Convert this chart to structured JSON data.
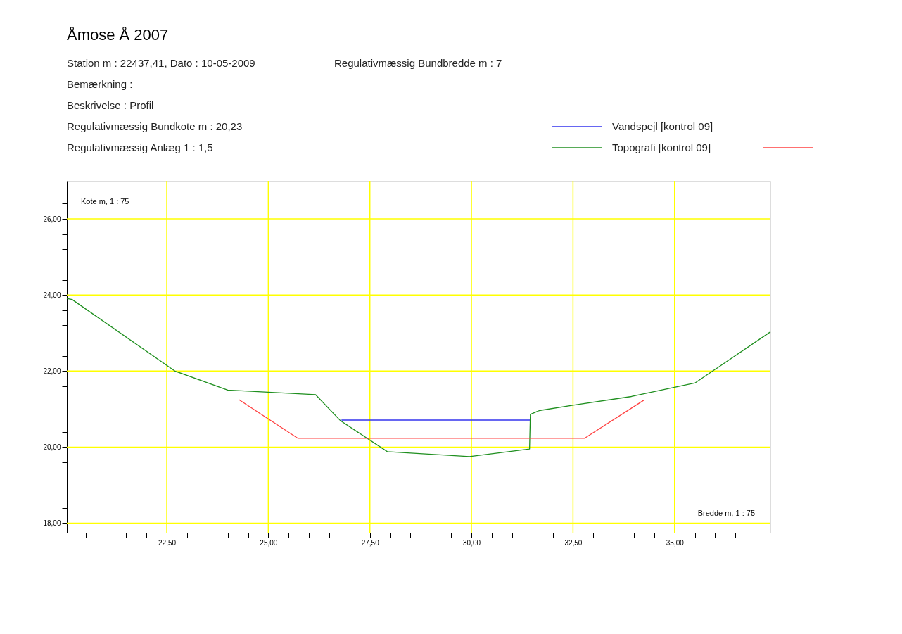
{
  "chart_data": {
    "type": "line",
    "title": "Åmose Å 2007",
    "annotations": [
      "Station m : 22437,41, Dato : 10-05-2009",
      "Regulativmæssig Bundbredde m : 7",
      "Bemærkning :",
      "Beskrivelse : Profil",
      "Regulativmæssig Bundkote m : 20,23",
      "Regulativmæssig Anlæg 1 : 1,5"
    ],
    "xlabel": "Bredde m, 1 : 75",
    "ylabel": "Kote m, 1 : 75",
    "series": [
      {
        "name": "Vandspejl [kontrol 09]",
        "color": "#3333ee",
        "x": [
          26.8,
          31.45
        ],
        "values": [
          20.71,
          20.71
        ]
      },
      {
        "name": "Topografi [kontrol 09]",
        "color": "#1f8f1f",
        "x": [
          20.04,
          20.17,
          22.7,
          24.0,
          26.16,
          26.78,
          27.93,
          29.95,
          31.43,
          31.45,
          31.67,
          32.5,
          33.94,
          35.51,
          37.36
        ],
        "values": [
          23.91,
          23.88,
          22.0,
          21.5,
          21.38,
          20.69,
          19.88,
          19.75,
          19.95,
          20.86,
          20.96,
          21.1,
          21.33,
          21.69,
          23.03
        ]
      },
      {
        "color": "#ff4040",
        "x": [
          24.27,
          25.73,
          32.78,
          34.24
        ],
        "values": [
          21.25,
          20.23,
          20.23,
          21.23
        ]
      }
    ],
    "xlim": [
      20.04,
      37.36
    ],
    "ylim": [
      17.75,
      27.0
    ],
    "xticks": [
      {
        "value": 20.5,
        "label": null
      },
      {
        "value": 21.0,
        "label": null
      },
      {
        "value": 21.5,
        "label": null
      },
      {
        "value": 22.0,
        "label": null
      },
      {
        "value": 22.5,
        "label": "22,50"
      },
      {
        "value": 23.0,
        "label": null
      },
      {
        "value": 23.5,
        "label": null
      },
      {
        "value": 24.0,
        "label": null
      },
      {
        "value": 24.5,
        "label": null
      },
      {
        "value": 25.0,
        "label": "25,00"
      },
      {
        "value": 25.5,
        "label": null
      },
      {
        "value": 26.0,
        "label": null
      },
      {
        "value": 26.5,
        "label": null
      },
      {
        "value": 27.0,
        "label": null
      },
      {
        "value": 27.5,
        "label": "27,50"
      },
      {
        "value": 28.0,
        "label": null
      },
      {
        "value": 28.5,
        "label": null
      },
      {
        "value": 29.0,
        "label": null
      },
      {
        "value": 29.5,
        "label": null
      },
      {
        "value": 30.0,
        "label": "30,00"
      },
      {
        "value": 30.5,
        "label": null
      },
      {
        "value": 31.0,
        "label": null
      },
      {
        "value": 31.5,
        "label": null
      },
      {
        "value": 32.0,
        "label": null
      },
      {
        "value": 32.5,
        "label": "32,50"
      },
      {
        "value": 33.0,
        "label": null
      },
      {
        "value": 33.5,
        "label": null
      },
      {
        "value": 34.0,
        "label": null
      },
      {
        "value": 34.5,
        "label": null
      },
      {
        "value": 35.0,
        "label": "35,00"
      },
      {
        "value": 35.5,
        "label": null
      },
      {
        "value": 36.0,
        "label": null
      },
      {
        "value": 36.5,
        "label": null
      },
      {
        "value": 37.0,
        "label": null
      }
    ],
    "yticks": [
      {
        "value": 18.0,
        "label": "18,00"
      },
      {
        "value": 18.4,
        "label": null
      },
      {
        "value": 18.8,
        "label": null
      },
      {
        "value": 19.2,
        "label": null
      },
      {
        "value": 19.6,
        "label": null
      },
      {
        "value": 20.0,
        "label": "20,00"
      },
      {
        "value": 20.4,
        "label": null
      },
      {
        "value": 20.8,
        "label": null
      },
      {
        "value": 21.2,
        "label": null
      },
      {
        "value": 21.6,
        "label": null
      },
      {
        "value": 22.0,
        "label": "22,00"
      },
      {
        "value": 22.4,
        "label": null
      },
      {
        "value": 22.8,
        "label": null
      },
      {
        "value": 23.2,
        "label": null
      },
      {
        "value": 23.6,
        "label": null
      },
      {
        "value": 24.0,
        "label": "24,00"
      },
      {
        "value": 24.4,
        "label": null
      },
      {
        "value": 24.8,
        "label": null
      },
      {
        "value": 25.2,
        "label": null
      },
      {
        "value": 25.6,
        "label": null
      },
      {
        "value": 26.0,
        "label": "26,00"
      },
      {
        "value": 26.4,
        "label": null
      },
      {
        "value": 26.8,
        "label": null
      }
    ],
    "grid": true,
    "legend": "top right",
    "marker": "none",
    "line_style": "solid"
  }
}
